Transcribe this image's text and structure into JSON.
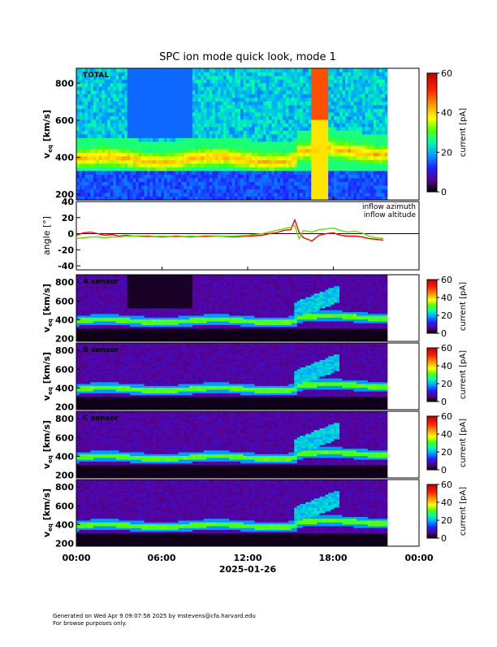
{
  "title": "SPC ion mode quick look, mode 1",
  "footer": {
    "line1": "Generated on Wed Apr  9 09:07:58 2025 by mstevens@cfa.harvard.edu",
    "line2": "For browse purposes only."
  },
  "colorbar": {
    "label": "current [pA]",
    "colors": [
      "#000000",
      "#5a0090",
      "#2020ff",
      "#00aaff",
      "#00ffaa",
      "#55ff00",
      "#ffff00",
      "#ffa500",
      "#ff2000",
      "#c00000"
    ]
  },
  "chart_data": [
    {
      "type": "heatmap",
      "panel": "total",
      "label": "TOTAL",
      "ylabel_main": "v",
      "ylabel_sub": "eq",
      "ylabel_unit": " [km/s]",
      "xlim": [
        0,
        24
      ],
      "ylim": [
        170,
        880
      ],
      "yticks": [
        200,
        400,
        600,
        800
      ],
      "data_end_hour": 21.8,
      "colorbar_range": [
        0,
        60
      ],
      "colorbar_ticks": [
        0,
        20,
        40,
        60
      ]
    },
    {
      "type": "line",
      "panel": "angle",
      "ylabel": "angle [°]",
      "xlim": [
        0,
        24
      ],
      "ylim": [
        -45,
        40
      ],
      "yticks": [
        -40,
        -20,
        0,
        20,
        40
      ],
      "data_end_hour": 21.8,
      "series": [
        {
          "name": "inflow azimuth",
          "color": "#ff0000",
          "x": [
            0,
            0.5,
            1,
            1.5,
            2,
            2.5,
            3,
            3.5,
            4,
            5,
            6,
            7,
            8,
            9,
            10,
            11,
            12,
            13,
            13.5,
            14,
            14.5,
            15,
            15.3,
            15.6,
            15.9,
            16.2,
            16.5,
            17,
            17.5,
            18,
            18.5,
            19,
            19.5,
            20,
            20.5,
            21,
            21.5
          ],
          "y": [
            -2,
            1,
            2,
            0,
            -2,
            -1,
            -3,
            -2,
            -3,
            -3,
            -4,
            -3,
            -4,
            -3,
            -3,
            -4,
            -3,
            -2,
            0,
            1,
            4,
            5,
            17,
            2,
            -5,
            -7,
            -9,
            -2,
            0,
            1,
            -2,
            -3,
            -3,
            -4,
            -6,
            -7,
            -8
          ]
        },
        {
          "name": "inflow altitude",
          "color": "#66dd00",
          "x": [
            0,
            0.5,
            1,
            1.5,
            2,
            2.5,
            3,
            3.5,
            4,
            5,
            6,
            7,
            8,
            9,
            10,
            11,
            12,
            13,
            13.5,
            14,
            14.5,
            15,
            15.3,
            15.6,
            15.9,
            16.2,
            16.5,
            17,
            17.5,
            18,
            18.5,
            19,
            19.5,
            20,
            20.5,
            21,
            21.5
          ],
          "y": [
            -6,
            -5,
            -4,
            -4,
            -5,
            -4,
            -4,
            -3,
            -3,
            -4,
            -3,
            -4,
            -3,
            -4,
            -3,
            -3,
            -2,
            0,
            2,
            4,
            6,
            8,
            10,
            -6,
            4,
            3,
            2,
            5,
            6,
            7,
            4,
            2,
            3,
            1,
            -3,
            -5,
            -6
          ]
        }
      ]
    },
    {
      "type": "heatmap",
      "panel": "sensor-a",
      "label": "A sensor",
      "ylabel_main": "v",
      "ylabel_sub": "eq",
      "ylabel_unit": " [km/s]",
      "xlim": [
        0,
        24
      ],
      "ylim": [
        170,
        880
      ],
      "yticks": [
        200,
        400,
        600,
        800
      ],
      "data_end_hour": 21.8,
      "colorbar_range": [
        0,
        60
      ],
      "colorbar_ticks": [
        0,
        20,
        40,
        60
      ]
    },
    {
      "type": "heatmap",
      "panel": "sensor-b",
      "label": "B sensor",
      "ylabel_main": "v",
      "ylabel_sub": "eq",
      "ylabel_unit": " [km/s]",
      "xlim": [
        0,
        24
      ],
      "ylim": [
        170,
        880
      ],
      "yticks": [
        200,
        400,
        600,
        800
      ],
      "data_end_hour": 21.8,
      "colorbar_range": [
        0,
        60
      ],
      "colorbar_ticks": [
        0,
        20,
        40,
        60
      ]
    },
    {
      "type": "heatmap",
      "panel": "sensor-c",
      "label": "C sensor",
      "ylabel_main": "v",
      "ylabel_sub": "eq",
      "ylabel_unit": " [km/s]",
      "xlim": [
        0,
        24
      ],
      "ylim": [
        170,
        880
      ],
      "yticks": [
        200,
        400,
        600,
        800
      ],
      "data_end_hour": 21.8,
      "colorbar_range": [
        0,
        60
      ],
      "colorbar_ticks": [
        0,
        20,
        40,
        60
      ]
    },
    {
      "type": "heatmap",
      "panel": "sensor-d",
      "label": "",
      "ylabel_main": "v",
      "ylabel_sub": "eq",
      "ylabel_unit": " [km/s]",
      "xlim": [
        0,
        24
      ],
      "ylim": [
        170,
        880
      ],
      "yticks": [
        200,
        400,
        600,
        800
      ],
      "data_end_hour": 21.8,
      "colorbar_range": [
        0,
        60
      ],
      "colorbar_ticks": [
        0,
        20,
        40,
        60
      ]
    }
  ],
  "x_axis": {
    "ticks": [
      "00:00",
      "06:00",
      "12:00",
      "18:00",
      "00:00"
    ],
    "date": "2025-01-26"
  }
}
